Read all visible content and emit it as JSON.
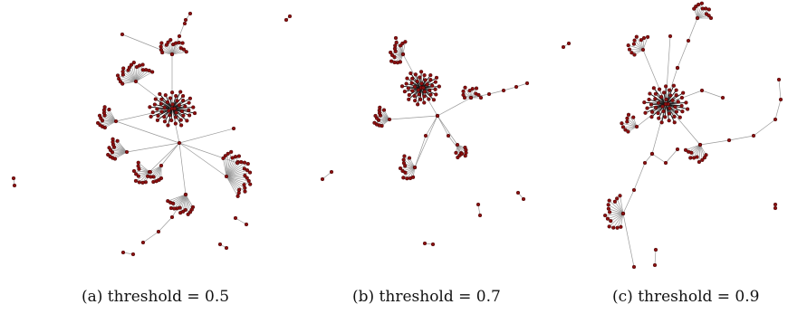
{
  "figure": {
    "captions": {
      "a": "(a) threshold = 0.5",
      "b": "(b) threshold = 0.7",
      "c": "(c) threshold = 0.9"
    },
    "colors": {
      "node_fill": "#8b0f0f",
      "node_stroke": "#2a0000",
      "edge": "#9a9a9a",
      "hub_edge": "#1a1a1a"
    }
  }
}
